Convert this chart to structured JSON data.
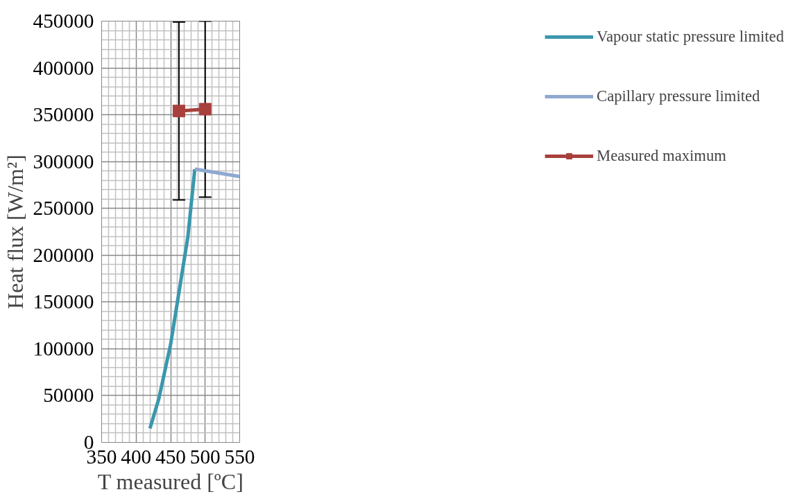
{
  "chart_data": {
    "type": "line",
    "xlabel": "T measured [ºC]",
    "ylabel": "Heat flux [W/m²]",
    "xlim": [
      350,
      550
    ],
    "ylim": [
      0,
      450000
    ],
    "xticks": [
      350,
      400,
      450,
      500,
      550
    ],
    "yticks": [
      0,
      50000,
      100000,
      150000,
      200000,
      250000,
      300000,
      350000,
      400000,
      450000
    ],
    "grid": true,
    "legend": "right",
    "marker": "none",
    "line_style": "solid",
    "series": [
      {
        "name": "Vapour static pressure limited",
        "color": "#3a97ad",
        "x": [
          420,
          433,
          450,
          475,
          485
        ],
        "values": [
          15000,
          47000,
          105000,
          220000,
          292000
        ]
      },
      {
        "name": "Capillary pressure limited",
        "color": "#8ea8d0",
        "x": [
          485,
          550
        ],
        "values": [
          292000,
          284000
        ]
      },
      {
        "name": "Measured maximum",
        "color": "#a8403c",
        "marker": "square",
        "x": [
          462,
          500
        ],
        "values": [
          354000,
          356000
        ],
        "errors": [
          95000,
          94000
        ]
      }
    ]
  }
}
